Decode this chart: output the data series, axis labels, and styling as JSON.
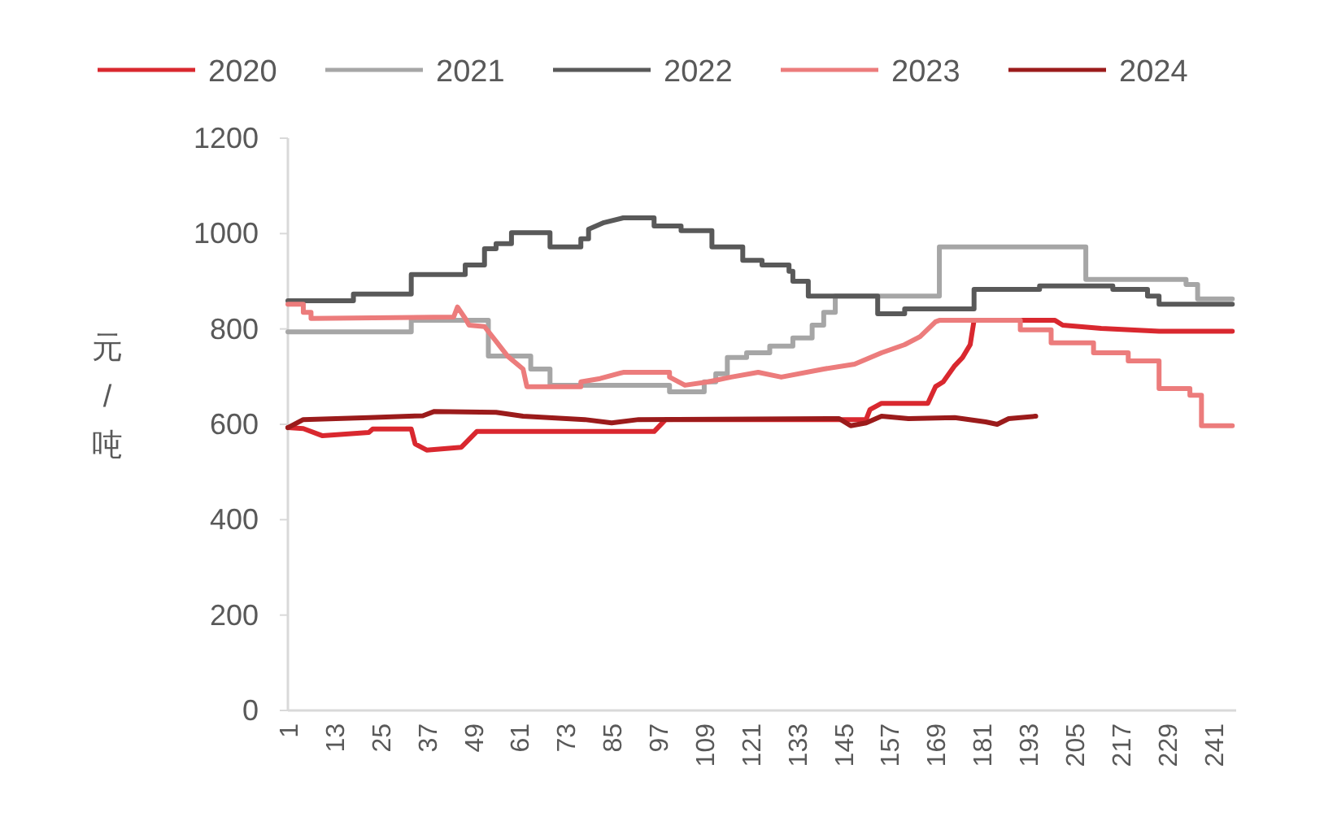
{
  "chart_data": {
    "type": "line",
    "ylabel": "元/吨",
    "legend": "top",
    "xlim": [
      1,
      247
    ],
    "ylim": [
      0,
      1200
    ],
    "xticks": [
      1,
      13,
      25,
      37,
      49,
      61,
      73,
      85,
      97,
      109,
      121,
      133,
      145,
      157,
      169,
      181,
      193,
      205,
      217,
      229,
      241
    ],
    "yticks": [
      0,
      200,
      400,
      600,
      800,
      1000,
      1200
    ],
    "series": [
      {
        "name": "2020",
        "color": "#d9282f",
        "x": [
          1,
          5,
          10,
          22,
          23,
          33,
          34,
          37,
          46,
          50,
          96,
          99,
          151,
          152,
          155,
          167,
          169,
          171,
          174,
          176,
          178,
          179,
          200,
          202,
          212,
          227,
          246
        ],
        "values": [
          593,
          591,
          576,
          583,
          590,
          590,
          559,
          546,
          552,
          585,
          585,
          610,
          610,
          631,
          644,
          644,
          679,
          689,
          723,
          740,
          767,
          818,
          818,
          808,
          801,
          795,
          795
        ]
      },
      {
        "name": "2021",
        "color": "#a6a6a6",
        "x": [
          1,
          33,
          33,
          53,
          53,
          64,
          64,
          69,
          69,
          100,
          100,
          109,
          109,
          112,
          112,
          115,
          115,
          120,
          120,
          126,
          126,
          132,
          132,
          137,
          137,
          140,
          140,
          143,
          143,
          170,
          170,
          208,
          208,
          234,
          234,
          237,
          237,
          246
        ],
        "values": [
          794,
          794,
          818,
          818,
          743,
          743,
          716,
          716,
          682,
          682,
          668,
          668,
          689,
          689,
          706,
          706,
          740,
          740,
          750,
          750,
          764,
          764,
          781,
          781,
          808,
          808,
          835,
          835,
          869,
          869,
          972,
          972,
          904,
          904,
          893,
          893,
          863,
          863
        ]
      },
      {
        "name": "2022",
        "color": "#595959",
        "x": [
          1,
          18,
          18,
          33,
          33,
          47,
          47,
          52,
          52,
          55,
          55,
          59,
          59,
          69,
          69,
          77,
          77,
          79,
          79,
          83,
          88,
          96,
          96,
          103,
          103,
          111,
          111,
          119,
          119,
          124,
          124,
          131,
          131,
          132,
          132,
          136,
          136,
          154,
          154,
          161,
          161,
          179,
          179,
          196,
          196,
          215,
          215,
          224,
          224,
          227,
          227,
          246
        ],
        "values": [
          859,
          859,
          873,
          873,
          914,
          914,
          934,
          934,
          968,
          968,
          979,
          979,
          1002,
          1002,
          972,
          972,
          989,
          989,
          1009,
          1023,
          1033,
          1033,
          1016,
          1016,
          1006,
          1006,
          972,
          972,
          944,
          944,
          934,
          934,
          921,
          921,
          900,
          900,
          869,
          869,
          832,
          832,
          842,
          842,
          883,
          883,
          890,
          890,
          883,
          883,
          869,
          869,
          852,
          852
        ]
      },
      {
        "name": "2023",
        "color": "#ec7c7c",
        "x": [
          1,
          5,
          5,
          7,
          7,
          44,
          45,
          47,
          48,
          52,
          55,
          58,
          62,
          63,
          77,
          77,
          82,
          88,
          100,
          100,
          104,
          110,
          116,
          123,
          129,
          140,
          148,
          155,
          161,
          165,
          169,
          170,
          191,
          191,
          199,
          199,
          210,
          210,
          219,
          219,
          227,
          227,
          235,
          235,
          238,
          238,
          246
        ],
        "values": [
          852,
          852,
          835,
          835,
          822,
          825,
          846,
          822,
          808,
          805,
          774,
          743,
          716,
          679,
          679,
          689,
          696,
          709,
          709,
          699,
          682,
          689,
          699,
          709,
          699,
          716,
          726,
          750,
          767,
          784,
          815,
          818,
          818,
          798,
          798,
          771,
          771,
          750,
          750,
          733,
          733,
          675,
          675,
          661,
          661,
          597,
          597
        ]
      },
      {
        "name": "2024",
        "color": "#9b1b1b",
        "x": [
          1,
          5,
          22,
          36,
          39,
          55,
          62,
          78,
          85,
          92,
          144,
          147,
          151,
          155,
          162,
          174,
          182,
          185,
          188,
          195
        ],
        "values": [
          593,
          610,
          614,
          618,
          627,
          625,
          617,
          610,
          603,
          610,
          612,
          597,
          603,
          617,
          612,
          614,
          605,
          600,
          612,
          617
        ]
      }
    ]
  }
}
